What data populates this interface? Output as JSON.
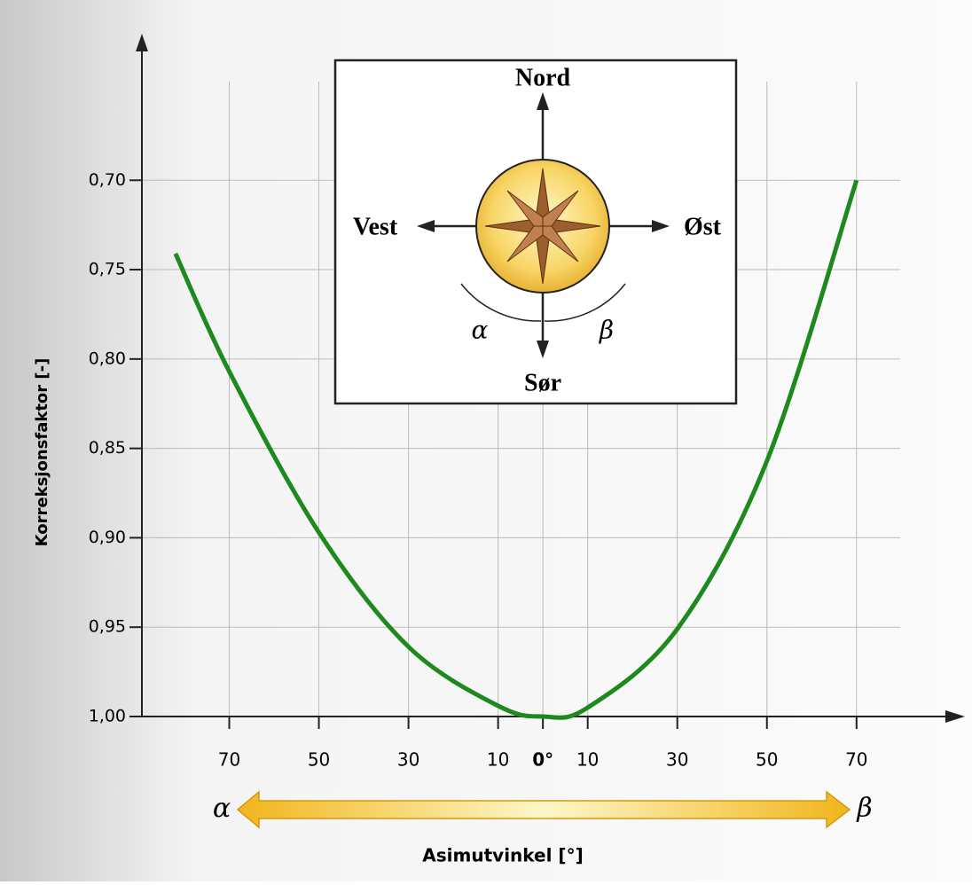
{
  "chart_data": {
    "type": "line",
    "x_label": "Asimutvinkel [°]",
    "y_label": "Korreksjonsfaktor [-]",
    "x_arrow_left": "α",
    "x_arrow_right": "β",
    "x": [
      -82,
      -70,
      -50,
      -30,
      -10,
      0,
      10,
      30,
      50,
      70
    ],
    "series": [
      {
        "color": "#1e8a1e",
        "values": [
          0.741,
          0.807,
          0.897,
          0.961,
          0.994,
          1.0,
          0.995,
          0.951,
          0.857,
          0.7
        ]
      }
    ],
    "xlim": [
      -89.5,
      93
    ],
    "ylim": [
      1.0,
      0.62
    ],
    "xticks": [
      {
        "value": -70,
        "label": "70"
      },
      {
        "value": -50,
        "label": "50"
      },
      {
        "value": -30,
        "label": "30"
      },
      {
        "value": -10,
        "label": "10"
      },
      {
        "value": 0,
        "label": "0°"
      },
      10,
      30,
      50,
      70
    ],
    "yticks": [
      {
        "value": 0.7,
        "label": "0,70"
      },
      {
        "value": 0.75,
        "label": "0,75"
      },
      {
        "value": 0.8,
        "label": "0,80"
      },
      {
        "value": 0.85,
        "label": "0,85"
      },
      {
        "value": 0.9,
        "label": "0,90"
      },
      {
        "value": 0.95,
        "label": "0,95"
      },
      {
        "value": 1.0,
        "label": "1,00"
      }
    ],
    "grid": true,
    "inset": {
      "north": "Nord",
      "west": "Vest",
      "east": "Øst",
      "south": "Sør",
      "alpha": "α",
      "beta": "β"
    }
  }
}
